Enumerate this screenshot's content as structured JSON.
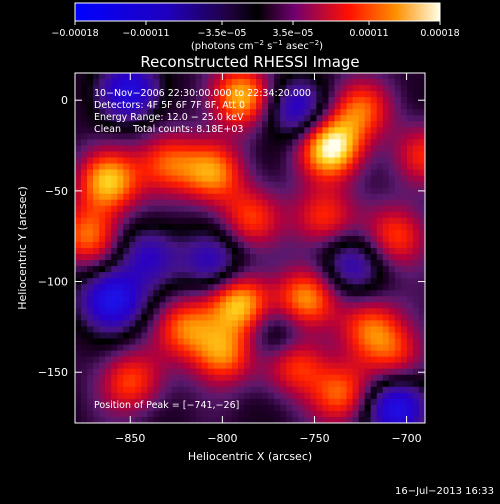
{
  "chart_data": {
    "type": "heatmap",
    "title": "Reconstructed RHESSI Image",
    "xlabel": "Heliocentric X (arcsec)",
    "ylabel": "Heliocentric Y (arcsec)",
    "xlim": [
      -880,
      -690
    ],
    "ylim": [
      -178,
      15
    ],
    "x_ticks": [
      -850,
      -800,
      -750,
      -700
    ],
    "y_ticks": [
      0,
      -50,
      -100,
      -150
    ],
    "x_tick_labels": [
      "−850",
      "−800",
      "−750",
      "−700"
    ],
    "y_tick_labels": [
      "0",
      "−50",
      "−100",
      "−150"
    ],
    "colorbar": {
      "min": -0.00018,
      "max": 0.00018,
      "ticks": [
        -0.00018,
        -0.00011,
        -3.5e-05,
        3.5e-05,
        0.00011,
        0.00018
      ],
      "tick_labels": [
        "−0.00018",
        "−0.00011",
        "−3.5e−05",
        "3.5e−05",
        "0.00011",
        "0.00018"
      ],
      "label_main": "(photons cm",
      "label_sup1": "−2",
      "label_mid1": " s",
      "label_sup2": "−1",
      "label_mid2": " asec",
      "label_sup3": "−2",
      "label_end": ")"
    },
    "annotations": [
      "10−Nov−2006 22:30:00.000 to 22:34:20.000",
      "Detectors: 4F 5F 6F 7F 8F, Att 0",
      "Energy Range: 12.0 − 25.0 keV",
      "Clean    Total counts: 8.18E+03"
    ],
    "peak_label": "Position of Peak = [−741,−26]",
    "peak": [
      -741,
      -26
    ],
    "blobs": [
      {
        "x": -741,
        "y": -26,
        "v": 1.0
      },
      {
        "x": -790,
        "y": 2,
        "v": 0.8
      },
      {
        "x": -725,
        "y": -5,
        "v": 0.55
      },
      {
        "x": -862,
        "y": -45,
        "v": 0.8
      },
      {
        "x": -872,
        "y": -75,
        "v": 0.65
      },
      {
        "x": -830,
        "y": -35,
        "v": 0.6
      },
      {
        "x": -805,
        "y": -40,
        "v": 0.65
      },
      {
        "x": -785,
        "y": -65,
        "v": 0.5
      },
      {
        "x": -745,
        "y": -65,
        "v": 0.55
      },
      {
        "x": -705,
        "y": -75,
        "v": 0.55
      },
      {
        "x": -790,
        "y": -112,
        "v": 0.85
      },
      {
        "x": -755,
        "y": -110,
        "v": 0.7
      },
      {
        "x": -820,
        "y": -125,
        "v": 0.6
      },
      {
        "x": -800,
        "y": -140,
        "v": 0.7
      },
      {
        "x": -760,
        "y": -145,
        "v": 0.6
      },
      {
        "x": -850,
        "y": -155,
        "v": 0.55
      },
      {
        "x": -720,
        "y": -125,
        "v": 0.55
      },
      {
        "x": -735,
        "y": -162,
        "v": 0.6
      },
      {
        "x": -705,
        "y": -140,
        "v": 0.45
      },
      {
        "x": -690,
        "y": -30,
        "v": 0.45
      },
      {
        "x": -850,
        "y": 5,
        "v": -0.7
      },
      {
        "x": -760,
        "y": -5,
        "v": -0.6
      },
      {
        "x": -860,
        "y": -110,
        "v": -0.85
      },
      {
        "x": -805,
        "y": -90,
        "v": -0.55
      },
      {
        "x": -730,
        "y": -90,
        "v": -0.5
      },
      {
        "x": -705,
        "y": -170,
        "v": -0.8
      },
      {
        "x": -840,
        "y": -85,
        "v": -0.5
      },
      {
        "x": -770,
        "y": -130,
        "v": -0.4
      }
    ]
  },
  "footer": {
    "timestamp": "16−Jul−2013 16:33"
  }
}
